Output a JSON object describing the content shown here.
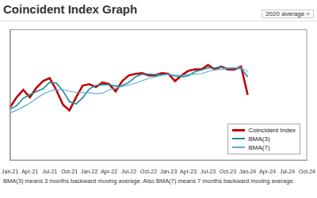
{
  "chart_data": {
    "type": "line",
    "title": "Coincident Index Graph",
    "subtitle": "2020 average =",
    "footnote": "BMA(3) means 3 months backward moving average. Also BMA(7) means 7 months backward moving average.",
    "categories": [
      "Jan-21",
      null,
      null,
      "Apr-21",
      null,
      null,
      "Jul-21",
      null,
      null,
      "Oct-21",
      null,
      null,
      "Jan-22",
      null,
      null,
      "Apr-22",
      null,
      null,
      "Jul-22",
      null,
      null,
      "Oct-22",
      null,
      null,
      "Jan-23",
      null,
      null,
      "Apr-23",
      null,
      null,
      "Jul-23",
      null,
      null,
      "Oct-23",
      null,
      null,
      "Jan-24",
      null,
      null,
      "Apr-24",
      null,
      null,
      "Jul-24",
      null,
      null,
      "Oct-24"
    ],
    "series": [
      {
        "name": "Coincident Index",
        "color": "#c00000",
        "marker": "none",
        "line_style": "solid",
        "values": [
          97.3,
          101.5,
          104.6,
          101.5,
          105.5,
          108.3,
          109.5,
          104.6,
          98.5,
          96.0,
          101.5,
          106.4,
          107.0,
          105.8,
          107.7,
          107.0,
          104.0,
          108.3,
          110.7,
          111.3,
          111.6,
          110.7,
          110.7,
          111.6,
          111.3,
          108.3,
          110.7,
          112.6,
          113.2,
          113.2,
          115.0,
          113.2,
          114.4,
          113.2,
          113.2,
          114.4,
          102.5,
          null,
          null,
          null,
          null,
          null,
          null,
          null,
          null,
          null
        ]
      },
      {
        "name": "BMA(3)",
        "color": "#1a8a9c",
        "marker": "none",
        "line_style": "solid",
        "values": [
          96.5,
          98.0,
          101.1,
          102.6,
          103.9,
          105.1,
          107.8,
          107.5,
          104.2,
          99.7,
          98.7,
          101.3,
          105.0,
          106.4,
          106.8,
          106.8,
          106.2,
          106.4,
          107.7,
          110.1,
          111.2,
          111.2,
          111.0,
          111.0,
          111.2,
          110.4,
          110.1,
          110.5,
          112.2,
          113.0,
          113.8,
          113.8,
          114.2,
          113.6,
          113.6,
          113.6,
          110.0,
          null,
          null,
          null,
          null,
          null,
          null,
          null,
          null,
          null
        ]
      },
      {
        "name": "BMA(7)",
        "color": "#5aaed8",
        "marker": "none",
        "line_style": "solid",
        "values": [
          95.0,
          96.0,
          97.5,
          99.0,
          101.0,
          102.8,
          104.0,
          104.8,
          104.6,
          104.0,
          103.6,
          103.5,
          103.4,
          103.0,
          103.2,
          104.6,
          105.3,
          106.0,
          106.6,
          107.4,
          108.4,
          109.4,
          110.1,
          110.7,
          111.1,
          110.8,
          110.7,
          111.0,
          111.3,
          111.4,
          112.3,
          113.0,
          113.2,
          113.7,
          113.9,
          113.8,
          112.3,
          null,
          null,
          null,
          null,
          null,
          null,
          null,
          null,
          null
        ]
      }
    ],
    "ylim": [
      75,
      130
    ],
    "grid": false,
    "legend": "lower right",
    "tick_labels": "x"
  }
}
